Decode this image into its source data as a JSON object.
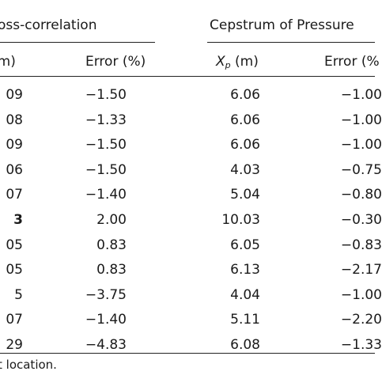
{
  "headers": {
    "group_cross": "oss-correlation",
    "group_cepstrum": "Cepstrum of Pressure",
    "col1": "(m)",
    "col2": "Error (%)",
    "col3_var": "X",
    "col3_sub": "p",
    "col3_unit": "(m)",
    "col4": "Error (%"
  },
  "rows": [
    {
      "c1": "09",
      "c2": "−1.50",
      "c3": "6.06",
      "c4": "−1.00"
    },
    {
      "c1": "08",
      "c2": "−1.33",
      "c3": "6.06",
      "c4": "−1.00"
    },
    {
      "c1": "09",
      "c2": "−1.50",
      "c3": "6.06",
      "c4": "−1.00"
    },
    {
      "c1": "06",
      "c2": "−1.50",
      "c3": "4.03",
      "c4": "−0.75"
    },
    {
      "c1": "07",
      "c2": "−1.40",
      "c3": "5.04",
      "c4": "−0.80"
    },
    {
      "c1": "3",
      "c2": "2.00",
      "c3": "10.03",
      "c4": "−0.30"
    },
    {
      "c1": "05",
      "c2": "0.83",
      "c3": "6.05",
      "c4": "−0.83"
    },
    {
      "c1": "05",
      "c2": "0.83",
      "c3": "6.13",
      "c4": "−2.17"
    },
    {
      "c1": "5",
      "c2": "−3.75",
      "c3": "4.04",
      "c4": "−1.00"
    },
    {
      "c1": "07",
      "c2": "−1.40",
      "c3": "5.11",
      "c4": "−2.20"
    },
    {
      "c1": "29",
      "c2": "−4.83",
      "c3": "6.08",
      "c4": "−1.33"
    }
  ],
  "footnote": "t location."
}
